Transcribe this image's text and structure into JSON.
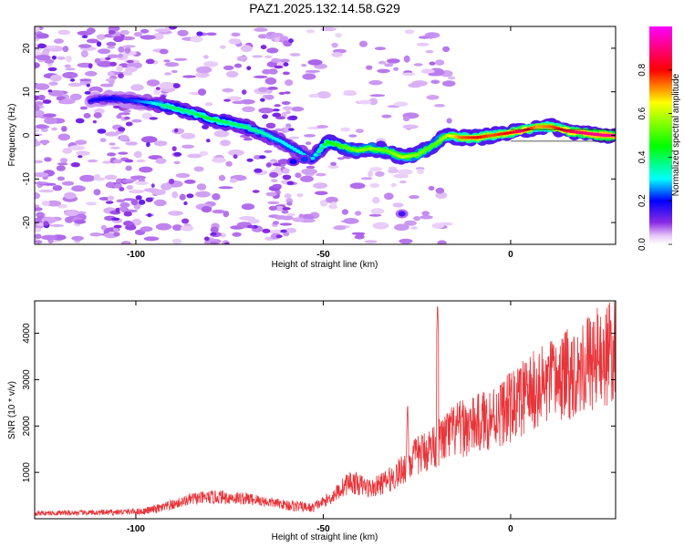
{
  "title": "PAZ1.2025.132.14.58.G29",
  "chart_data": [
    {
      "type": "heatmap",
      "xlabel": "Height of straight line (km)",
      "ylabel": "Frequency (Hz)",
      "xlim": [
        -127,
        28
      ],
      "ylim": [
        -25,
        25
      ],
      "xticks": [
        -100,
        -50,
        0
      ],
      "xtick_labels": [
        "-100",
        "-50",
        "0"
      ],
      "yticks": [
        -20,
        -10,
        0,
        10,
        20
      ],
      "ytick_labels": [
        "-20",
        "-10",
        "0",
        "10",
        "20"
      ],
      "colormap": "hsv-like (purple at 0 to red at 1)",
      "colorbar": {
        "label": "Normalized spectral amplitude",
        "range": [
          0,
          1
        ],
        "ticks": [
          0.0,
          0.2,
          0.4,
          0.6,
          0.8
        ],
        "tick_labels": [
          "0.0",
          "0.2",
          "0.4",
          "0.6",
          "0.8"
        ]
      },
      "ridge": {
        "description": "main Doppler ridge (frequency vs height)",
        "points": [
          {
            "x": -112,
            "f": 8,
            "a": 0.18
          },
          {
            "x": -107,
            "f": 8.5,
            "a": 0.2
          },
          {
            "x": -101,
            "f": 8,
            "a": 0.22
          },
          {
            "x": -96,
            "f": 7.5,
            "a": 0.28
          },
          {
            "x": -91,
            "f": 6.5,
            "a": 0.4
          },
          {
            "x": -86,
            "f": 5.5,
            "a": 0.38
          },
          {
            "x": -81,
            "f": 4,
            "a": 0.42
          },
          {
            "x": -76,
            "f": 3,
            "a": 0.4
          },
          {
            "x": -71,
            "f": 2,
            "a": 0.38
          },
          {
            "x": -66,
            "f": 0.5,
            "a": 0.35
          },
          {
            "x": -61,
            "f": -1.5,
            "a": 0.3
          },
          {
            "x": -57,
            "f": -3.5,
            "a": 0.3
          },
          {
            "x": -53,
            "f": -5.5,
            "a": 0.28
          },
          {
            "x": -49,
            "f": -1.5,
            "a": 0.45
          },
          {
            "x": -45,
            "f": -2.5,
            "a": 0.5
          },
          {
            "x": -41,
            "f": -3.5,
            "a": 0.55
          },
          {
            "x": -37,
            "f": -3,
            "a": 0.55
          },
          {
            "x": -33,
            "f": -3.5,
            "a": 0.52
          },
          {
            "x": -29,
            "f": -5,
            "a": 0.6
          },
          {
            "x": -25,
            "f": -4.5,
            "a": 0.55
          },
          {
            "x": -21,
            "f": -2.5,
            "a": 0.5
          },
          {
            "x": -17,
            "f": 0,
            "a": 0.6
          },
          {
            "x": -13,
            "f": -0.5,
            "a": 0.75
          },
          {
            "x": -9,
            "f": -0.5,
            "a": 0.8
          },
          {
            "x": -5,
            "f": 0,
            "a": 0.75
          },
          {
            "x": -1,
            "f": 0.5,
            "a": 0.8
          },
          {
            "x": 3,
            "f": 1,
            "a": 0.88
          },
          {
            "x": 7,
            "f": 2,
            "a": 0.7
          },
          {
            "x": 11,
            "f": 2,
            "a": 0.75
          },
          {
            "x": 15,
            "f": 1,
            "a": 0.85
          },
          {
            "x": 20,
            "f": 0.5,
            "a": 0.9
          },
          {
            "x": 25,
            "f": 0,
            "a": 0.92
          },
          {
            "x": 28,
            "f": 0,
            "a": 0.92
          }
        ]
      },
      "secondary_blobs": [
        {
          "x": -58,
          "f": -6,
          "a": 0.2
        },
        {
          "x": -55,
          "f": -5.5,
          "a": 0.22
        },
        {
          "x": -29,
          "f": -18,
          "a": 0.15
        }
      ]
    },
    {
      "type": "line",
      "xlabel": "Height of straight line (km)",
      "ylabel": "SNR (10 * v/v)",
      "xlim": [
        -127,
        28
      ],
      "ylim": [
        0,
        4700
      ],
      "xticks": [
        -100,
        -50,
        0
      ],
      "xtick_labels": [
        "-100",
        "-50",
        "0"
      ],
      "yticks": [
        1000,
        2000,
        3000,
        4000
      ],
      "ytick_labels": [
        "1000",
        "2000",
        "3000",
        "4000"
      ],
      "line_color": "#e8353a",
      "trend": [
        {
          "x": -127,
          "y": 120
        },
        {
          "x": -110,
          "y": 130
        },
        {
          "x": -98,
          "y": 160
        },
        {
          "x": -92,
          "y": 250
        },
        {
          "x": -85,
          "y": 430
        },
        {
          "x": -78,
          "y": 470
        },
        {
          "x": -70,
          "y": 430
        },
        {
          "x": -60,
          "y": 300
        },
        {
          "x": -53,
          "y": 230
        },
        {
          "x": -48,
          "y": 450
        },
        {
          "x": -43,
          "y": 800
        },
        {
          "x": -37,
          "y": 650
        },
        {
          "x": -31,
          "y": 900
        },
        {
          "x": -26,
          "y": 1300
        },
        {
          "x": -20,
          "y": 1600
        },
        {
          "x": -15,
          "y": 1900
        },
        {
          "x": -10,
          "y": 2000
        },
        {
          "x": -5,
          "y": 2200
        },
        {
          "x": 0,
          "y": 2400
        },
        {
          "x": 5,
          "y": 2700
        },
        {
          "x": 10,
          "y": 2900
        },
        {
          "x": 15,
          "y": 3100
        },
        {
          "x": 20,
          "y": 3350
        },
        {
          "x": 28,
          "y": 3600
        }
      ],
      "spikes": [
        {
          "x": -19.5,
          "y": 4700
        },
        {
          "x": -27.5,
          "y": 2550
        }
      ]
    }
  ]
}
